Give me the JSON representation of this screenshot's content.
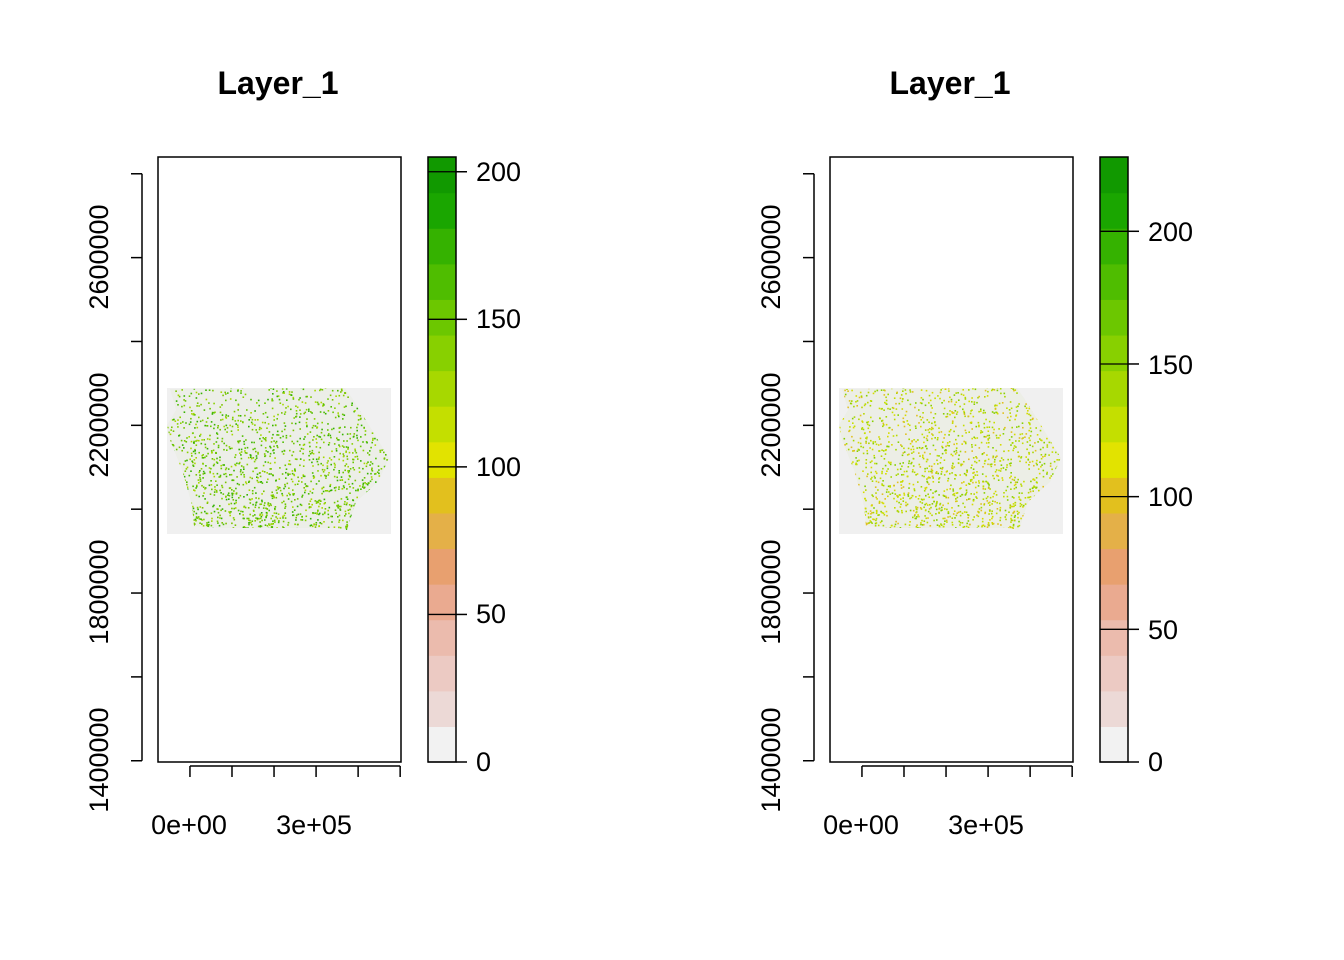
{
  "chart_data": [
    {
      "type": "heatmap",
      "title": "Layer_1",
      "xlabel": "",
      "ylabel": "",
      "x_ticks": [
        0,
        100000,
        200000,
        300000,
        400000,
        500000
      ],
      "x_tick_labels": [
        "0e+00",
        "3e+05"
      ],
      "x_tick_label_values": [
        0,
        300000
      ],
      "y_ticks": [
        1400000,
        1600000,
        1800000,
        2000000,
        2200000,
        2400000,
        2600000,
        2800000
      ],
      "y_tick_labels": [
        "1400000",
        "1800000",
        "2200000",
        "2600000"
      ],
      "y_tick_label_values": [
        1400000,
        1800000,
        2200000,
        2600000
      ],
      "xlim": [
        -76000,
        502000
      ],
      "ylim": [
        1397000,
        2840000
      ],
      "grid": false,
      "raster_extent": {
        "xmin": -52000,
        "xmax": 482000,
        "ymin": 1945000,
        "ymax": 2290000
      },
      "legend": {
        "position": "right",
        "range": [
          0,
          205
        ],
        "ticks": [
          0,
          50,
          100,
          150,
          200
        ],
        "tick_labels": [
          "0",
          "50",
          "100",
          "150",
          "200"
        ]
      }
    },
    {
      "type": "heatmap",
      "title": "Layer_1",
      "xlabel": "",
      "ylabel": "",
      "x_ticks": [
        0,
        100000,
        200000,
        300000,
        400000,
        500000
      ],
      "x_tick_labels": [
        "0e+00",
        "3e+05"
      ],
      "x_tick_label_values": [
        0,
        300000
      ],
      "y_ticks": [
        1400000,
        1600000,
        1800000,
        2000000,
        2200000,
        2400000,
        2600000,
        2800000
      ],
      "y_tick_labels": [
        "1400000",
        "1800000",
        "2200000",
        "2600000"
      ],
      "y_tick_label_values": [
        1400000,
        1800000,
        2200000,
        2600000
      ],
      "xlim": [
        -76000,
        502000
      ],
      "ylim": [
        1397000,
        2840000
      ],
      "grid": false,
      "raster_extent": {
        "xmin": -52000,
        "xmax": 482000,
        "ymin": 1945000,
        "ymax": 2290000
      },
      "legend": {
        "position": "right",
        "range": [
          0,
          228
        ],
        "ticks": [
          0,
          50,
          100,
          150,
          200
        ],
        "tick_labels": [
          "0",
          "50",
          "100",
          "150",
          "200"
        ]
      }
    }
  ],
  "colors": {
    "palette": [
      "#f2f2f2",
      "#ecd9d6",
      "#eccac3",
      "#ebbbad",
      "#eaaa90",
      "#e8a06f",
      "#e4b048",
      "#e2c01e",
      "#e2e300",
      "#c4df00",
      "#a7d800",
      "#88d000",
      "#6cc700",
      "#4fbd00",
      "#35b200",
      "#1aa600",
      "#119900"
    ],
    "background": "#f0f0f0",
    "axis": "#000000"
  }
}
